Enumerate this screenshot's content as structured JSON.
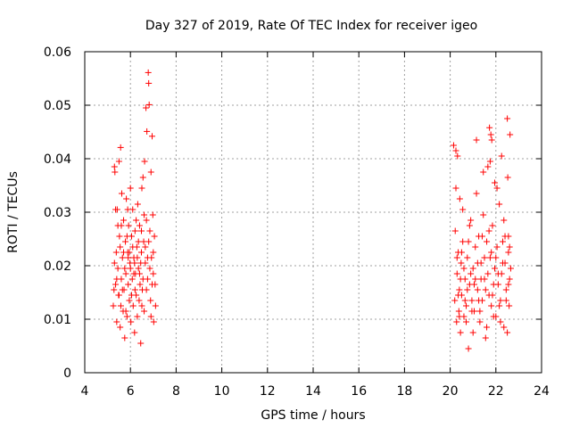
{
  "chart_data": {
    "type": "scatter",
    "title": "Day 327 of 2019, Rate Of TEC Index for receiver igeo",
    "xlabel": "GPS time / hours",
    "ylabel": "ROTI / TECUs",
    "xlim": [
      4,
      24
    ],
    "ylim": [
      0,
      0.06
    ],
    "xticks": [
      4,
      6,
      8,
      10,
      12,
      14,
      16,
      18,
      20,
      22,
      24
    ],
    "yticks": [
      0,
      0.01,
      0.02,
      0.03,
      0.04,
      0.05,
      0.06
    ],
    "xtick_labels": [
      "4",
      "6",
      "8",
      "10",
      "12",
      "14",
      "16",
      "18",
      "20",
      "22",
      "24"
    ],
    "ytick_labels": [
      "0",
      "0.01",
      "0.02",
      "0.03",
      "0.04",
      "0.05",
      "0.06"
    ],
    "grid": true,
    "marker": "+",
    "color": "#ff0000",
    "series": [
      {
        "name": "ROTI",
        "points": [
          [
            5.25,
            0.0125
          ],
          [
            5.3,
            0.0385
          ],
          [
            5.32,
            0.0375
          ],
          [
            5.35,
            0.0165
          ],
          [
            5.38,
            0.0225
          ],
          [
            5.4,
            0.0095
          ],
          [
            5.42,
            0.0305
          ],
          [
            5.45,
            0.0195
          ],
          [
            5.48,
            0.0145
          ],
          [
            5.5,
            0.0395
          ],
          [
            5.52,
            0.0255
          ],
          [
            5.55,
            0.0085
          ],
          [
            5.57,
            0.0421
          ],
          [
            5.6,
            0.0175
          ],
          [
            5.62,
            0.0335
          ],
          [
            5.65,
            0.0215
          ],
          [
            5.68,
            0.0115
          ],
          [
            5.7,
            0.0285
          ],
          [
            5.72,
            0.0155
          ],
          [
            5.75,
            0.0065
          ],
          [
            5.78,
            0.0245
          ],
          [
            5.8,
            0.0185
          ],
          [
            5.82,
            0.0325
          ],
          [
            5.85,
            0.0105
          ],
          [
            5.88,
            0.0225
          ],
          [
            5.9,
            0.0165
          ],
          [
            5.92,
            0.0275
          ],
          [
            5.95,
            0.0135
          ],
          [
            5.98,
            0.0205
          ],
          [
            6.0,
            0.0345
          ],
          [
            6.02,
            0.0095
          ],
          [
            6.05,
            0.0255
          ],
          [
            6.08,
            0.0175
          ],
          [
            6.1,
            0.0305
          ],
          [
            6.12,
            0.0125
          ],
          [
            6.15,
            0.0215
          ],
          [
            6.18,
            0.0075
          ],
          [
            6.2,
            0.0265
          ],
          [
            6.22,
            0.0185
          ],
          [
            6.25,
            0.0145
          ],
          [
            6.28,
            0.0235
          ],
          [
            6.3,
            0.0105
          ],
          [
            6.32,
            0.0315
          ],
          [
            6.35,
            0.0195
          ],
          [
            6.38,
            0.0135
          ],
          [
            6.4,
            0.0275
          ],
          [
            6.42,
            0.0165
          ],
          [
            6.45,
            0.0055
          ],
          [
            6.48,
            0.0225
          ],
          [
            6.5,
            0.0345
          ],
          [
            6.52,
            0.0155
          ],
          [
            6.55,
            0.0365
          ],
          [
            6.58,
            0.0245
          ],
          [
            6.6,
            0.0115
          ],
          [
            6.62,
            0.0395
          ],
          [
            6.65,
            0.0205
          ],
          [
            6.68,
            0.0495
          ],
          [
            6.7,
            0.0285
          ],
          [
            6.72,
            0.0451
          ],
          [
            6.75,
            0.0175
          ],
          [
            6.78,
            0.0561
          ],
          [
            6.8,
            0.0541
          ],
          [
            6.82,
            0.0501
          ],
          [
            6.85,
            0.0265
          ],
          [
            6.88,
            0.0135
          ],
          [
            6.9,
            0.0375
          ],
          [
            6.92,
            0.0215
          ],
          [
            6.95,
            0.0442
          ],
          [
            6.98,
            0.0295
          ],
          [
            7.0,
            0.0185
          ],
          [
            7.02,
            0.0095
          ],
          [
            7.05,
            0.0255
          ],
          [
            7.08,
            0.0165
          ],
          [
            7.1,
            0.0125
          ],
          [
            5.35,
            0.0305
          ],
          [
            5.45,
            0.0275
          ],
          [
            5.55,
            0.0235
          ],
          [
            5.65,
            0.0155
          ],
          [
            5.75,
            0.0195
          ],
          [
            5.85,
            0.0255
          ],
          [
            5.95,
            0.0225
          ],
          [
            6.05,
            0.0145
          ],
          [
            6.15,
            0.0185
          ],
          [
            6.25,
            0.0285
          ],
          [
            6.35,
            0.0245
          ],
          [
            6.45,
            0.0205
          ],
          [
            6.55,
            0.0175
          ],
          [
            6.65,
            0.0235
          ],
          [
            6.75,
            0.0215
          ],
          [
            6.85,
            0.0195
          ],
          [
            6.95,
            0.0165
          ],
          [
            5.3,
            0.0205
          ],
          [
            5.4,
            0.0175
          ],
          [
            5.5,
            0.0145
          ],
          [
            5.6,
            0.0275
          ],
          [
            5.7,
            0.0225
          ],
          [
            5.8,
            0.0115
          ],
          [
            5.9,
            0.0215
          ],
          [
            6.0,
            0.0195
          ],
          [
            6.1,
            0.0235
          ],
          [
            6.2,
            0.0155
          ],
          [
            6.3,
            0.0215
          ],
          [
            6.4,
            0.0185
          ],
          [
            6.5,
            0.0125
          ],
          [
            6.6,
            0.0295
          ],
          [
            6.7,
            0.0155
          ],
          [
            6.8,
            0.0245
          ],
          [
            6.9,
            0.0105
          ],
          [
            7.0,
            0.0225
          ],
          [
            5.28,
            0.0155
          ],
          [
            5.58,
            0.0125
          ],
          [
            5.88,
            0.0305
          ],
          [
            6.18,
            0.0205
          ],
          [
            6.48,
            0.0265
          ],
          [
            20.15,
            0.0425
          ],
          [
            20.2,
            0.0135
          ],
          [
            20.22,
            0.0265
          ],
          [
            20.25,
            0.0415
          ],
          [
            20.28,
            0.0095
          ],
          [
            20.3,
            0.0185
          ],
          [
            20.32,
            0.0405
          ],
          [
            20.35,
            0.0225
          ],
          [
            20.38,
            0.0115
          ],
          [
            20.4,
            0.0155
          ],
          [
            20.42,
            0.0325
          ],
          [
            20.45,
            0.0075
          ],
          [
            20.48,
            0.0205
          ],
          [
            20.5,
            0.0145
          ],
          [
            20.55,
            0.0245
          ],
          [
            20.6,
            0.0105
          ],
          [
            20.65,
            0.0175
          ],
          [
            20.7,
            0.0125
          ],
          [
            20.75,
            0.0215
          ],
          [
            20.8,
            0.0045
          ],
          [
            20.85,
            0.0165
          ],
          [
            20.9,
            0.0285
          ],
          [
            20.95,
            0.0135
          ],
          [
            21.0,
            0.0195
          ],
          [
            21.05,
            0.0115
          ],
          [
            21.1,
            0.0235
          ],
          [
            21.15,
            0.0435
          ],
          [
            21.2,
            0.0155
          ],
          [
            21.25,
            0.0255
          ],
          [
            21.3,
            0.0095
          ],
          [
            21.35,
            0.0205
          ],
          [
            21.4,
            0.0135
          ],
          [
            21.45,
            0.0295
          ],
          [
            21.5,
            0.0175
          ],
          [
            21.55,
            0.0065
          ],
          [
            21.6,
            0.0245
          ],
          [
            21.65,
            0.0385
          ],
          [
            21.7,
            0.0145
          ],
          [
            21.72,
            0.0458
          ],
          [
            21.75,
            0.0215
          ],
          [
            21.78,
            0.0445
          ],
          [
            21.8,
            0.0125
          ],
          [
            21.82,
            0.0435
          ],
          [
            21.85,
            0.0275
          ],
          [
            21.9,
            0.0165
          ],
          [
            21.95,
            0.0355
          ],
          [
            22.0,
            0.0105
          ],
          [
            22.05,
            0.0235
          ],
          [
            22.1,
            0.0185
          ],
          [
            22.15,
            0.0315
          ],
          [
            22.2,
            0.0135
          ],
          [
            22.25,
            0.0405
          ],
          [
            22.3,
            0.0205
          ],
          [
            22.35,
            0.0085
          ],
          [
            22.4,
            0.0255
          ],
          [
            22.45,
            0.0155
          ],
          [
            22.5,
            0.0475
          ],
          [
            22.52,
            0.0365
          ],
          [
            22.55,
            0.0225
          ],
          [
            22.58,
            0.0125
          ],
          [
            22.6,
            0.0175
          ],
          [
            22.62,
            0.0445
          ],
          [
            22.65,
            0.0195
          ],
          [
            20.3,
            0.0215
          ],
          [
            20.45,
            0.0175
          ],
          [
            20.6,
            0.0195
          ],
          [
            20.75,
            0.0155
          ],
          [
            20.9,
            0.0185
          ],
          [
            21.05,
            0.0165
          ],
          [
            21.2,
            0.0205
          ],
          [
            21.35,
            0.0175
          ],
          [
            21.5,
            0.0215
          ],
          [
            21.65,
            0.0185
          ],
          [
            21.8,
            0.0225
          ],
          [
            21.95,
            0.0195
          ],
          [
            22.1,
            0.0165
          ],
          [
            22.25,
            0.0185
          ],
          [
            22.4,
            0.0205
          ],
          [
            22.55,
            0.0165
          ],
          [
            20.35,
            0.0145
          ],
          [
            20.5,
            0.0225
          ],
          [
            20.65,
            0.0135
          ],
          [
            20.8,
            0.0245
          ],
          [
            20.95,
            0.0115
          ],
          [
            21.1,
            0.0175
          ],
          [
            21.25,
            0.0135
          ],
          [
            21.4,
            0.0255
          ],
          [
            21.55,
            0.0155
          ],
          [
            21.7,
            0.0265
          ],
          [
            21.85,
            0.0145
          ],
          [
            22.0,
            0.0215
          ],
          [
            22.15,
            0.0125
          ],
          [
            22.3,
            0.0245
          ],
          [
            22.45,
            0.0135
          ],
          [
            22.6,
            0.0235
          ],
          [
            20.4,
            0.0105
          ],
          [
            20.7,
            0.0095
          ],
          [
            21.0,
            0.0075
          ],
          [
            21.3,
            0.0115
          ],
          [
            21.6,
            0.0085
          ],
          [
            21.9,
            0.0105
          ],
          [
            22.2,
            0.0095
          ],
          [
            22.5,
            0.0075
          ],
          [
            20.25,
            0.0345
          ],
          [
            20.55,
            0.0305
          ],
          [
            20.85,
            0.0275
          ],
          [
            21.15,
            0.0335
          ],
          [
            21.45,
            0.0375
          ],
          [
            21.75,
            0.0395
          ],
          [
            22.05,
            0.0345
          ],
          [
            22.35,
            0.0285
          ],
          [
            22.55,
            0.0255
          ]
        ]
      }
    ]
  }
}
